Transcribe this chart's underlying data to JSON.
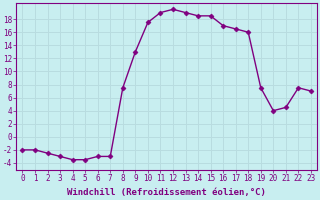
{
  "x": [
    0,
    1,
    2,
    3,
    4,
    5,
    6,
    7,
    8,
    9,
    10,
    11,
    12,
    13,
    14,
    15,
    16,
    17,
    18,
    19,
    20,
    21,
    22,
    23
  ],
  "y": [
    -2,
    -2,
    -2.5,
    -3,
    -3.5,
    -3.5,
    -3,
    -3,
    7.5,
    13,
    17.5,
    19,
    19.5,
    19,
    18.5,
    18.5,
    17,
    16.5,
    16,
    7.5,
    4,
    4.5,
    7.5,
    7
  ],
  "line_color": "#800080",
  "marker": "D",
  "marker_size": 2.5,
  "linewidth": 1.0,
  "bg_color": "#c8eef0",
  "grid_color": "#b8dce0",
  "xlabel": "Windchill (Refroidissement éolien,°C)",
  "xlabel_fontsize": 6.5,
  "yticks": [
    -4,
    -2,
    0,
    2,
    4,
    6,
    8,
    10,
    12,
    14,
    16,
    18
  ],
  "xlim": [
    -0.5,
    23.5
  ],
  "ylim": [
    -5,
    20.5
  ],
  "tick_fontsize": 5.5
}
